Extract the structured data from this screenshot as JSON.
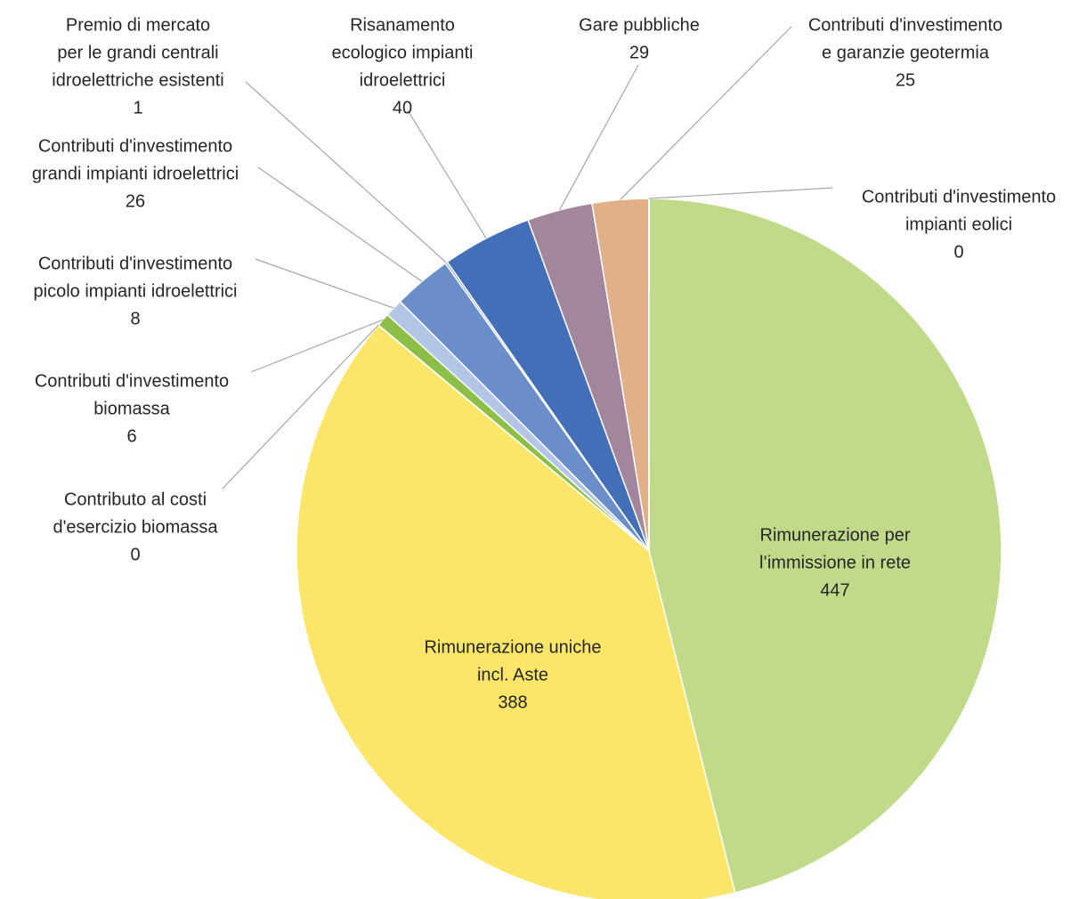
{
  "chart_data": {
    "type": "pie",
    "title": "",
    "start": "top (12 o'clock)",
    "direction": "clockwise",
    "slices": [
      {
        "lines": [
          "Rimunerazione per",
          "l’immissione in rete"
        ],
        "value": 447,
        "display": "447",
        "color": "#c1da8a",
        "label_inside": true
      },
      {
        "lines": [
          "Rimunerazione uniche",
          "incl. Aste"
        ],
        "value": 388,
        "display": "388",
        "color": "#fbe66a",
        "label_inside": true
      },
      {
        "lines": [
          "Contributo al costi",
          "d'esercizio biomassa"
        ],
        "value": 0.1,
        "display": "0",
        "color": "#8dbf48",
        "label_inside": false
      },
      {
        "lines": [
          "Contributi d'investimento",
          "biomassa"
        ],
        "value": 6,
        "display": "6",
        "color": "#8dbf48",
        "label_inside": false
      },
      {
        "lines": [
          "Contributi d'investimento",
          "picolo impianti idroelettrici"
        ],
        "value": 8,
        "display": "8",
        "color": "#b3c6e6",
        "label_inside": false
      },
      {
        "lines": [
          "Contributi d'investimento",
          "grandi impianti idroelettrici"
        ],
        "value": 26,
        "display": "26",
        "color": "#6a8ec9",
        "label_inside": false
      },
      {
        "lines": [
          "Premio di mercato",
          "per le grandi centrali",
          "idroelettriche esistenti"
        ],
        "value": 1,
        "display": "1",
        "color": "#8299c9",
        "label_inside": false
      },
      {
        "lines": [
          "Risanamento",
          "ecologico impianti",
          "idroelettrici"
        ],
        "value": 40,
        "display": "40",
        "color": "#436fb9",
        "label_inside": false
      },
      {
        "lines": [
          "Gare pubbliche"
        ],
        "value": 29,
        "display": "29",
        "color": "#a1869d",
        "label_inside": false
      },
      {
        "lines": [
          "Contributi d'investimento",
          "e garanzie geotermia"
        ],
        "value": 25,
        "display": "25",
        "color": "#e2b088",
        "label_inside": false
      },
      {
        "lines": [
          "Contributi d'investimento",
          "impianti eolici"
        ],
        "value": 0.1,
        "display": "0",
        "color": "#c1da8a",
        "label_inside": false
      }
    ]
  }
}
